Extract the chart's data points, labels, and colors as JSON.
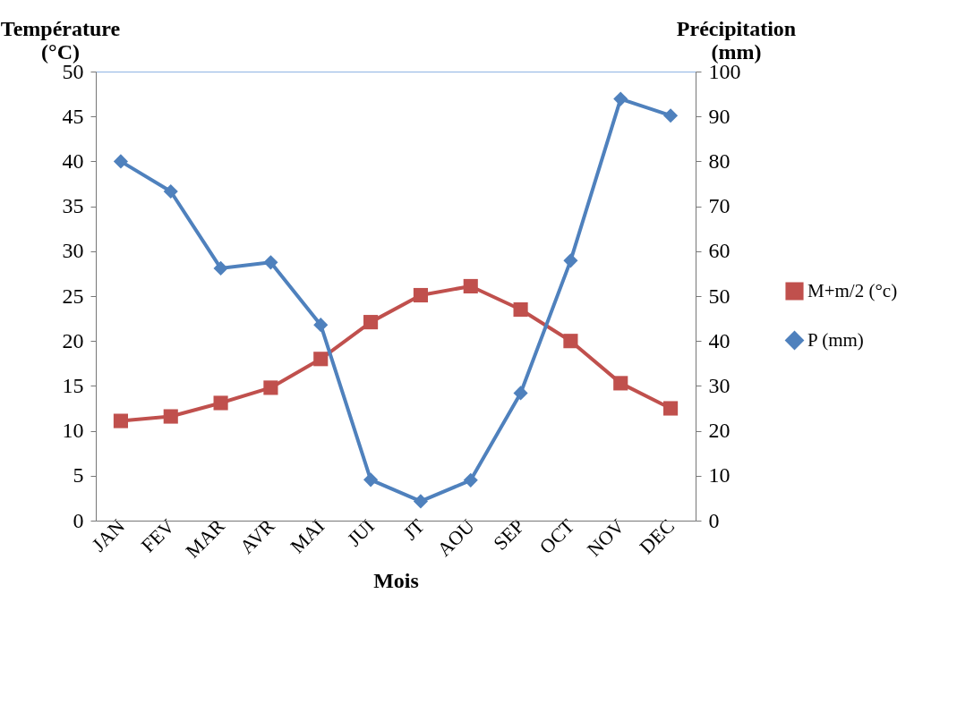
{
  "chart_data": {
    "type": "line",
    "xlabel": "Mois",
    "ylabel": "Température (°C)",
    "y2label": "Précipitation (mm)",
    "categories": [
      "JAN",
      "FEV",
      "MAR",
      "AVR",
      "MAI",
      "JUI",
      "JT",
      "AOU",
      "SEP",
      "OCT",
      "NOV",
      "DEC"
    ],
    "series": [
      {
        "name": "M+m/2 (°c)",
        "color": "#c0504d",
        "marker": "square",
        "values": [
          11.1,
          11.6,
          13.1,
          14.8,
          18.0,
          22.1,
          25.1,
          26.1,
          23.5,
          20.0,
          15.3,
          12.5
        ]
      },
      {
        "name": "P (mm)",
        "color": "#4f81bd",
        "marker": "diamond",
        "axis": "y2",
        "values": [
          80.0,
          73.3,
          56.2,
          57.5,
          43.6,
          9.1,
          4.3,
          9.0,
          28.4,
          57.9,
          93.9,
          90.2
        ]
      }
    ],
    "ylim": [
      0,
      50
    ],
    "yticks": [
      0,
      5,
      10,
      15,
      20,
      25,
      30,
      35,
      40,
      45,
      50
    ],
    "y2lim": [
      0,
      100
    ],
    "y2ticks": [
      0,
      10,
      20,
      30,
      40,
      50,
      60,
      70,
      80,
      90,
      100
    ],
    "grid": false,
    "legend": "right",
    "line_style": "solid"
  }
}
